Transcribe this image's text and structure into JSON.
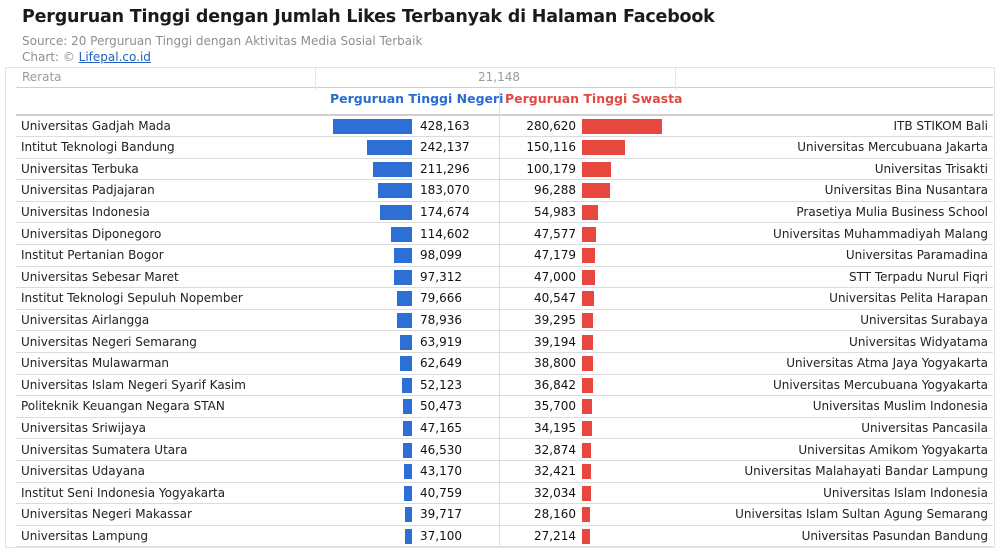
{
  "header": {
    "title": "Perguruan Tinggi dengan Jumlah Likes Terbanyak di Halaman Facebook",
    "source": "Source: 20 Perguruan Tinggi dengan Aktivitas Media Sosial Terbaik",
    "credit_prefix": "Chart: © ",
    "credit_link": "Lifepal.co.id"
  },
  "average": {
    "label": "Rerata",
    "value": "21,148"
  },
  "colors": {
    "negeri": "#2e6fd6",
    "swasta": "#e6473e"
  },
  "chart_data": {
    "type": "bar",
    "title": "Perguruan Tinggi dengan Jumlah Likes Terbanyak di Halaman Facebook",
    "average": 21148,
    "series": [
      {
        "name": "Perguruan Tinggi Negeri",
        "categories": [
          "Universitas Gadjah Mada",
          "Intitut Teknologi Bandung",
          "Universitas Terbuka",
          "Universitas Padjajaran",
          "Universitas Indonesia",
          "Universitas Diponegoro",
          "Institut Pertanian Bogor",
          "Universitas Sebesar Maret",
          "Institut Teknologi Sepuluh Nopember",
          "Universitas Airlangga",
          "Universitas Negeri Semarang",
          "Universitas Mulawarman",
          "Universitas Islam Negeri Syarif Kasim",
          "Politeknik Keuangan Negara STAN",
          "Universitas Sriwijaya",
          "Universitas Sumatera Utara",
          "Universitas Udayana",
          "Institut Seni Indonesia Yogyakarta",
          "Universitas Negeri Makassar",
          "Universitas Lampung"
        ],
        "values": [
          428163,
          242137,
          211296,
          183070,
          174674,
          114602,
          98099,
          97312,
          79666,
          78936,
          63919,
          62649,
          52123,
          50473,
          47165,
          46530,
          43170,
          40759,
          39717,
          37100
        ],
        "labels": [
          "428,163",
          "242,137",
          "211,296",
          "183,070",
          "174,674",
          "114,602",
          "98,099",
          "97,312",
          "79,666",
          "78,936",
          "63,919",
          "62,649",
          "52,123",
          "50,473",
          "47,165",
          "46,530",
          "43,170",
          "40,759",
          "39,717",
          "37,100"
        ]
      },
      {
        "name": "Perguruan Tinggi Swasta",
        "categories": [
          "ITB STIKOM Bali",
          "Universitas Mercubuana Jakarta",
          "Universitas Trisakti",
          "Universitas Bina Nusantara",
          "Prasetiya Mulia Business School",
          "Universitas Muhammadiyah Malang",
          "Universitas Paramadina",
          "STT Terpadu Nurul Fiqri",
          "Universitas Pelita Harapan",
          "Universitas Surabaya",
          "Universitas Widyatama",
          "Universitas Atma Jaya Yogyakarta",
          "Universitas Mercubuana Yogyakarta",
          "Universitas Muslim Indonesia",
          "Universitas Pancasila",
          "Universitas Amikom Yogyakarta",
          "Universitas Malahayati Bandar Lampung",
          "Universitas Islam Indonesia",
          "Universitas Islam Sultan Agung Semarang",
          "Universitas Pasundan Bandung"
        ],
        "values": [
          280620,
          150116,
          100179,
          96288,
          54983,
          47577,
          47179,
          47000,
          40547,
          39295,
          39194,
          38800,
          36842,
          35700,
          34195,
          32874,
          32421,
          32034,
          28160,
          27214
        ],
        "labels": [
          "280,620",
          "150,116",
          "100,179",
          "96,288",
          "54,983",
          "47,577",
          "47,179",
          "47,000",
          "40,547",
          "39,295",
          "39,194",
          "38,800",
          "36,842",
          "35,700",
          "34,195",
          "32,874",
          "32,421",
          "32,034",
          "28,160",
          "27,214"
        ]
      }
    ]
  }
}
